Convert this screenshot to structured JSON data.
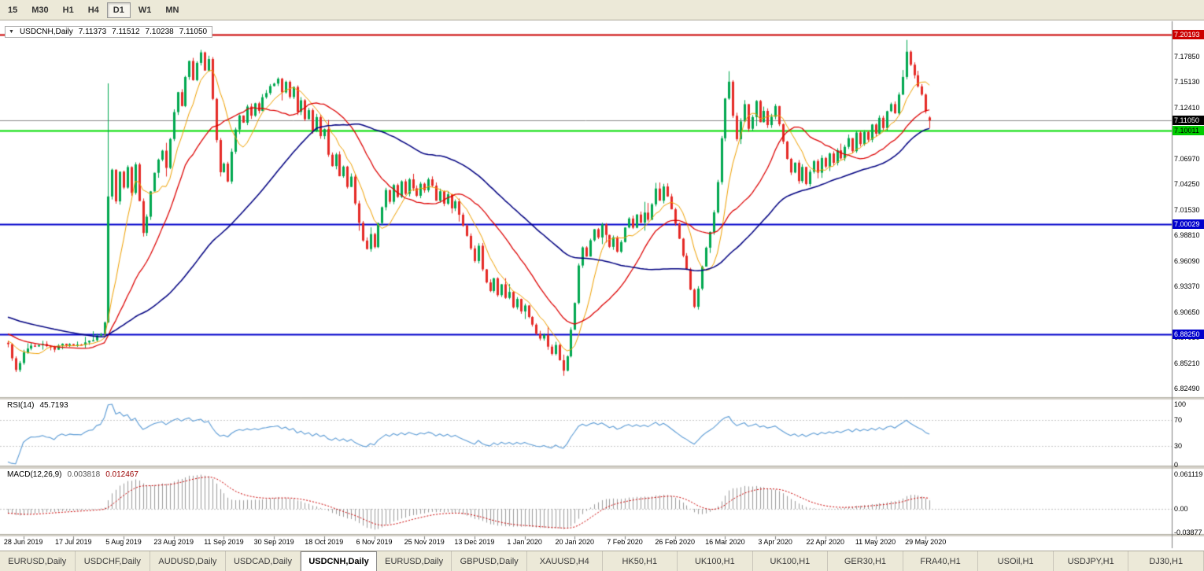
{
  "toolbar": {
    "timeframes": [
      "15",
      "M30",
      "H1",
      "H4",
      "D1",
      "W1",
      "MN"
    ],
    "active": "D1"
  },
  "chart": {
    "symbol_label": "USDCNH,Daily",
    "ohlc": {
      "open": "7.11373",
      "high": "7.11512",
      "low": "7.10238",
      "close": "7.11050"
    }
  },
  "chart_data": {
    "type": "candlestick",
    "symbol": "USDCNH",
    "timeframe": "Daily",
    "bars_total": 240,
    "price_axis": {
      "visible_max": 7.2137,
      "visible_min": 6.8157,
      "ticks": [
        "7.17850",
        "7.15130",
        "7.12410",
        "7.09690",
        "7.06970",
        "7.04250",
        "7.01530",
        "6.98810",
        "6.96090",
        "6.93370",
        "6.90650",
        "6.87930",
        "6.85210",
        "6.82490"
      ]
    },
    "levels": [
      {
        "name": "resistance-line-badge",
        "price": 7.20193,
        "label": "7.20193",
        "line_color": "#cc0000",
        "line_width": 2,
        "style": "solid",
        "badge_bg": "#cc0000",
        "badge_fg": "#ffffff"
      },
      {
        "name": "current-price-badge",
        "price": 7.1105,
        "label": "7.11050",
        "line_color": "#8a8a8a",
        "line_width": 1,
        "style": "solid",
        "badge_bg": "#000000",
        "badge_fg": "#ffffff"
      },
      {
        "name": "green-level-badge",
        "price": 7.10011,
        "label": "7.10011",
        "line_color": "#00dd00",
        "line_width": 2,
        "style": "solid",
        "badge_bg": "#00cc00",
        "badge_fg": "#000000"
      },
      {
        "name": "support-line-badge-1",
        "price": 7.00029,
        "label": "7.00029",
        "line_color": "#0000cc",
        "line_width": 2,
        "style": "solid",
        "badge_bg": "#0000cc",
        "badge_fg": "#ffffff"
      },
      {
        "name": "support-line-badge-2",
        "price": 6.8825,
        "label": "6.88250",
        "line_color": "#0000cc",
        "line_width": 2,
        "style": "solid",
        "badge_bg": "#0000cc",
        "badge_fg": "#ffffff"
      }
    ],
    "x_labels": [
      {
        "bar": 4,
        "label": "28 Jun 2019"
      },
      {
        "bar": 17,
        "label": "17 Jul 2019"
      },
      {
        "bar": 30,
        "label": "5 Aug 2019"
      },
      {
        "bar": 43,
        "label": "23 Aug 2019"
      },
      {
        "bar": 56,
        "label": "11 Sep 2019"
      },
      {
        "bar": 69,
        "label": "30 Sep 2019"
      },
      {
        "bar": 82,
        "label": "18 Oct 2019"
      },
      {
        "bar": 95,
        "label": "6 Nov 2019"
      },
      {
        "bar": 108,
        "label": "25 Nov 2019"
      },
      {
        "bar": 121,
        "label": "13 Dec 2019"
      },
      {
        "bar": 134,
        "label": "1 Jan 2020"
      },
      {
        "bar": 147,
        "label": "20 Jan 2020"
      },
      {
        "bar": 160,
        "label": "7 Feb 2020"
      },
      {
        "bar": 173,
        "label": "26 Feb 2020"
      },
      {
        "bar": 186,
        "label": "16 Mar 2020"
      },
      {
        "bar": 199,
        "label": "3 Apr 2020"
      },
      {
        "bar": 212,
        "label": "22 Apr 2020"
      },
      {
        "bar": 225,
        "label": "11 May 2020"
      },
      {
        "bar": 238,
        "label": "29 May 2020"
      }
    ],
    "moving_averages": [
      {
        "period": 8,
        "color": "#f0a000"
      },
      {
        "period": 21,
        "color": "#dd0000"
      },
      {
        "period": 55,
        "color": "#000080"
      }
    ],
    "indicators": {
      "rsi": {
        "label": "RSI(14)",
        "value": "45.7193",
        "period": 14,
        "levels": [
          70,
          30
        ],
        "scale": [
          "100",
          "70",
          "30",
          "0"
        ]
      },
      "macd": {
        "label": "MACD(12,26,9)",
        "value_macd": "0.003818",
        "value_signal": "0.012467",
        "scale_top": "0.061119",
        "scale_zero": "0.00",
        "scale_bottom": "-0.03877"
      }
    },
    "price_path": [
      [
        0,
        6.872
      ],
      [
        1,
        6.858
      ],
      [
        2,
        6.846
      ],
      [
        4,
        6.862
      ],
      [
        6,
        6.87
      ],
      [
        9,
        6.874
      ],
      [
        12,
        6.868
      ],
      [
        15,
        6.872
      ],
      [
        18,
        6.87
      ],
      [
        21,
        6.875
      ],
      [
        24,
        6.882
      ],
      [
        25,
        6.895
      ],
      [
        26,
        7.03
      ],
      [
        27,
        7.06
      ],
      [
        28,
        7.025
      ],
      [
        29,
        7.055
      ],
      [
        30,
        7.04
      ],
      [
        31,
        7.06
      ],
      [
        32,
        7.035
      ],
      [
        33,
        7.065
      ],
      [
        34,
        7.025
      ],
      [
        35,
        6.992
      ],
      [
        36,
        7.01
      ],
      [
        37,
        7.035
      ],
      [
        38,
        7.055
      ],
      [
        40,
        7.08
      ],
      [
        41,
        7.062
      ],
      [
        42,
        7.09
      ],
      [
        43,
        7.12
      ],
      [
        44,
        7.142
      ],
      [
        45,
        7.128
      ],
      [
        46,
        7.158
      ],
      [
        47,
        7.172
      ],
      [
        48,
        7.155
      ],
      [
        49,
        7.17
      ],
      [
        50,
        7.184
      ],
      [
        51,
        7.165
      ],
      [
        52,
        7.176
      ],
      [
        53,
        7.132
      ],
      [
        54,
        7.09
      ],
      [
        55,
        7.056
      ],
      [
        56,
        7.066
      ],
      [
        57,
        7.046
      ],
      [
        58,
        7.076
      ],
      [
        59,
        7.1
      ],
      [
        60,
        7.118
      ],
      [
        61,
        7.108
      ],
      [
        62,
        7.124
      ],
      [
        63,
        7.114
      ],
      [
        64,
        7.13
      ],
      [
        65,
        7.12
      ],
      [
        66,
        7.136
      ],
      [
        68,
        7.146
      ],
      [
        69,
        7.152
      ],
      [
        70,
        7.156
      ],
      [
        71,
        7.14
      ],
      [
        72,
        7.15
      ],
      [
        73,
        7.134
      ],
      [
        74,
        7.145
      ],
      [
        75,
        7.12
      ],
      [
        76,
        7.13
      ],
      [
        77,
        7.11
      ],
      [
        78,
        7.12
      ],
      [
        79,
        7.1
      ],
      [
        80,
        7.112
      ],
      [
        81,
        7.092
      ],
      [
        82,
        7.102
      ],
      [
        83,
        7.076
      ],
      [
        84,
        7.06
      ],
      [
        85,
        7.074
      ],
      [
        86,
        7.05
      ],
      [
        87,
        7.062
      ],
      [
        88,
        7.04
      ],
      [
        89,
        7.052
      ],
      [
        90,
        7.02
      ],
      [
        91,
        7.0
      ],
      [
        92,
        6.984
      ],
      [
        93,
        6.974
      ],
      [
        94,
        6.99
      ],
      [
        95,
        6.976
      ],
      [
        96,
        7.0
      ],
      [
        97,
        7.02
      ],
      [
        98,
        7.036
      ],
      [
        99,
        7.024
      ],
      [
        100,
        7.04
      ],
      [
        101,
        7.03
      ],
      [
        102,
        7.046
      ],
      [
        103,
        7.034
      ],
      [
        104,
        7.05
      ],
      [
        105,
        7.04
      ],
      [
        106,
        7.03
      ],
      [
        107,
        7.044
      ],
      [
        108,
        7.034
      ],
      [
        109,
        7.05
      ],
      [
        110,
        7.04
      ],
      [
        111,
        7.026
      ],
      [
        112,
        7.036
      ],
      [
        113,
        7.02
      ],
      [
        114,
        7.03
      ],
      [
        115,
        7.016
      ],
      [
        116,
        7.026
      ],
      [
        117,
        7.01
      ],
      [
        118,
        7.0
      ],
      [
        119,
        6.988
      ],
      [
        120,
        6.976
      ],
      [
        121,
        6.962
      ],
      [
        122,
        6.976
      ],
      [
        123,
        6.954
      ],
      [
        124,
        6.94
      ],
      [
        125,
        6.93
      ],
      [
        126,
        6.942
      ],
      [
        127,
        6.926
      ],
      [
        128,
        6.936
      ],
      [
        129,
        6.92
      ],
      [
        130,
        6.926
      ],
      [
        131,
        6.91
      ],
      [
        132,
        6.92
      ],
      [
        133,
        6.906
      ],
      [
        134,
        6.914
      ],
      [
        135,
        6.9
      ],
      [
        136,
        6.894
      ],
      [
        137,
        6.884
      ],
      [
        138,
        6.876
      ],
      [
        139,
        6.884
      ],
      [
        140,
        6.87
      ],
      [
        141,
        6.862
      ],
      [
        142,
        6.87
      ],
      [
        143,
        6.854
      ],
      [
        144,
        6.845
      ],
      [
        145,
        6.86
      ],
      [
        146,
        6.886
      ],
      [
        147,
        6.916
      ],
      [
        148,
        6.956
      ],
      [
        149,
        6.976
      ],
      [
        150,
        6.966
      ],
      [
        151,
        6.982
      ],
      [
        152,
        6.996
      ],
      [
        153,
        6.986
      ],
      [
        154,
        7.0
      ],
      [
        155,
        6.99
      ],
      [
        156,
        6.976
      ],
      [
        157,
        6.986
      ],
      [
        158,
        6.972
      ],
      [
        159,
        6.982
      ],
      [
        160,
        6.996
      ],
      [
        161,
        7.006
      ],
      [
        162,
        6.996
      ],
      [
        163,
        7.01
      ],
      [
        164,
        7.0
      ],
      [
        165,
        7.014
      ],
      [
        166,
        7.004
      ],
      [
        167,
        7.02
      ],
      [
        168,
        7.036
      ],
      [
        169,
        7.026
      ],
      [
        170,
        7.04
      ],
      [
        171,
        7.03
      ],
      [
        172,
        7.014
      ],
      [
        173,
        7.0
      ],
      [
        174,
        6.984
      ],
      [
        175,
        6.968
      ],
      [
        176,
        6.952
      ],
      [
        177,
        6.93
      ],
      [
        178,
        6.91
      ],
      [
        179,
        6.932
      ],
      [
        180,
        6.956
      ],
      [
        181,
        6.976
      ],
      [
        182,
        6.992
      ],
      [
        183,
        7.012
      ],
      [
        184,
        7.046
      ],
      [
        185,
        7.092
      ],
      [
        186,
        7.132
      ],
      [
        187,
        7.152
      ],
      [
        188,
        7.114
      ],
      [
        189,
        7.09
      ],
      [
        190,
        7.11
      ],
      [
        191,
        7.126
      ],
      [
        192,
        7.1
      ],
      [
        193,
        7.116
      ],
      [
        194,
        7.13
      ],
      [
        195,
        7.11
      ],
      [
        196,
        7.12
      ],
      [
        197,
        7.104
      ],
      [
        198,
        7.116
      ],
      [
        199,
        7.126
      ],
      [
        200,
        7.108
      ],
      [
        201,
        7.088
      ],
      [
        202,
        7.068
      ],
      [
        203,
        7.054
      ],
      [
        204,
        7.064
      ],
      [
        205,
        7.048
      ],
      [
        206,
        7.06
      ],
      [
        207,
        7.044
      ],
      [
        208,
        7.056
      ],
      [
        209,
        7.066
      ],
      [
        210,
        7.054
      ],
      [
        211,
        7.07
      ],
      [
        212,
        7.06
      ],
      [
        213,
        7.076
      ],
      [
        214,
        7.064
      ],
      [
        215,
        7.08
      ],
      [
        216,
        7.07
      ],
      [
        217,
        7.082
      ],
      [
        218,
        7.092
      ],
      [
        219,
        7.08
      ],
      [
        220,
        7.096
      ],
      [
        221,
        7.086
      ],
      [
        222,
        7.1
      ],
      [
        223,
        7.09
      ],
      [
        224,
        7.106
      ],
      [
        225,
        7.098
      ],
      [
        226,
        7.114
      ],
      [
        227,
        7.104
      ],
      [
        228,
        7.12
      ],
      [
        229,
        7.13
      ],
      [
        230,
        7.12
      ],
      [
        231,
        7.136
      ],
      [
        232,
        7.158
      ],
      [
        233,
        7.186
      ],
      [
        234,
        7.168
      ],
      [
        235,
        7.158
      ],
      [
        236,
        7.148
      ],
      [
        237,
        7.138
      ],
      [
        238,
        7.12
      ],
      [
        239,
        7.1105
      ]
    ]
  },
  "tabs": {
    "items": [
      "EURUSD,Daily",
      "USDCHF,Daily",
      "AUDUSD,Daily",
      "USDCAD,Daily",
      "USDCNH,Daily",
      "EURUSD,Daily",
      "GBPUSD,Daily",
      "XAUUSD,H4",
      "HK50,H1",
      "UK100,H1",
      "UK100,H1",
      "GER30,H1",
      "FRA40,H1",
      "USOil,H1",
      "USDJPY,H1",
      "DJ30,H1"
    ],
    "active_index": 4
  },
  "colors": {
    "bull": "#00a84f",
    "bear": "#e52a26",
    "rsi_line": "#5b9bd5",
    "macd_hist": "#9c9c9c",
    "macd_signal": "#cc0000",
    "toolbar_bg": "#ece9d8",
    "panel_divider": "#d4d0c8"
  }
}
